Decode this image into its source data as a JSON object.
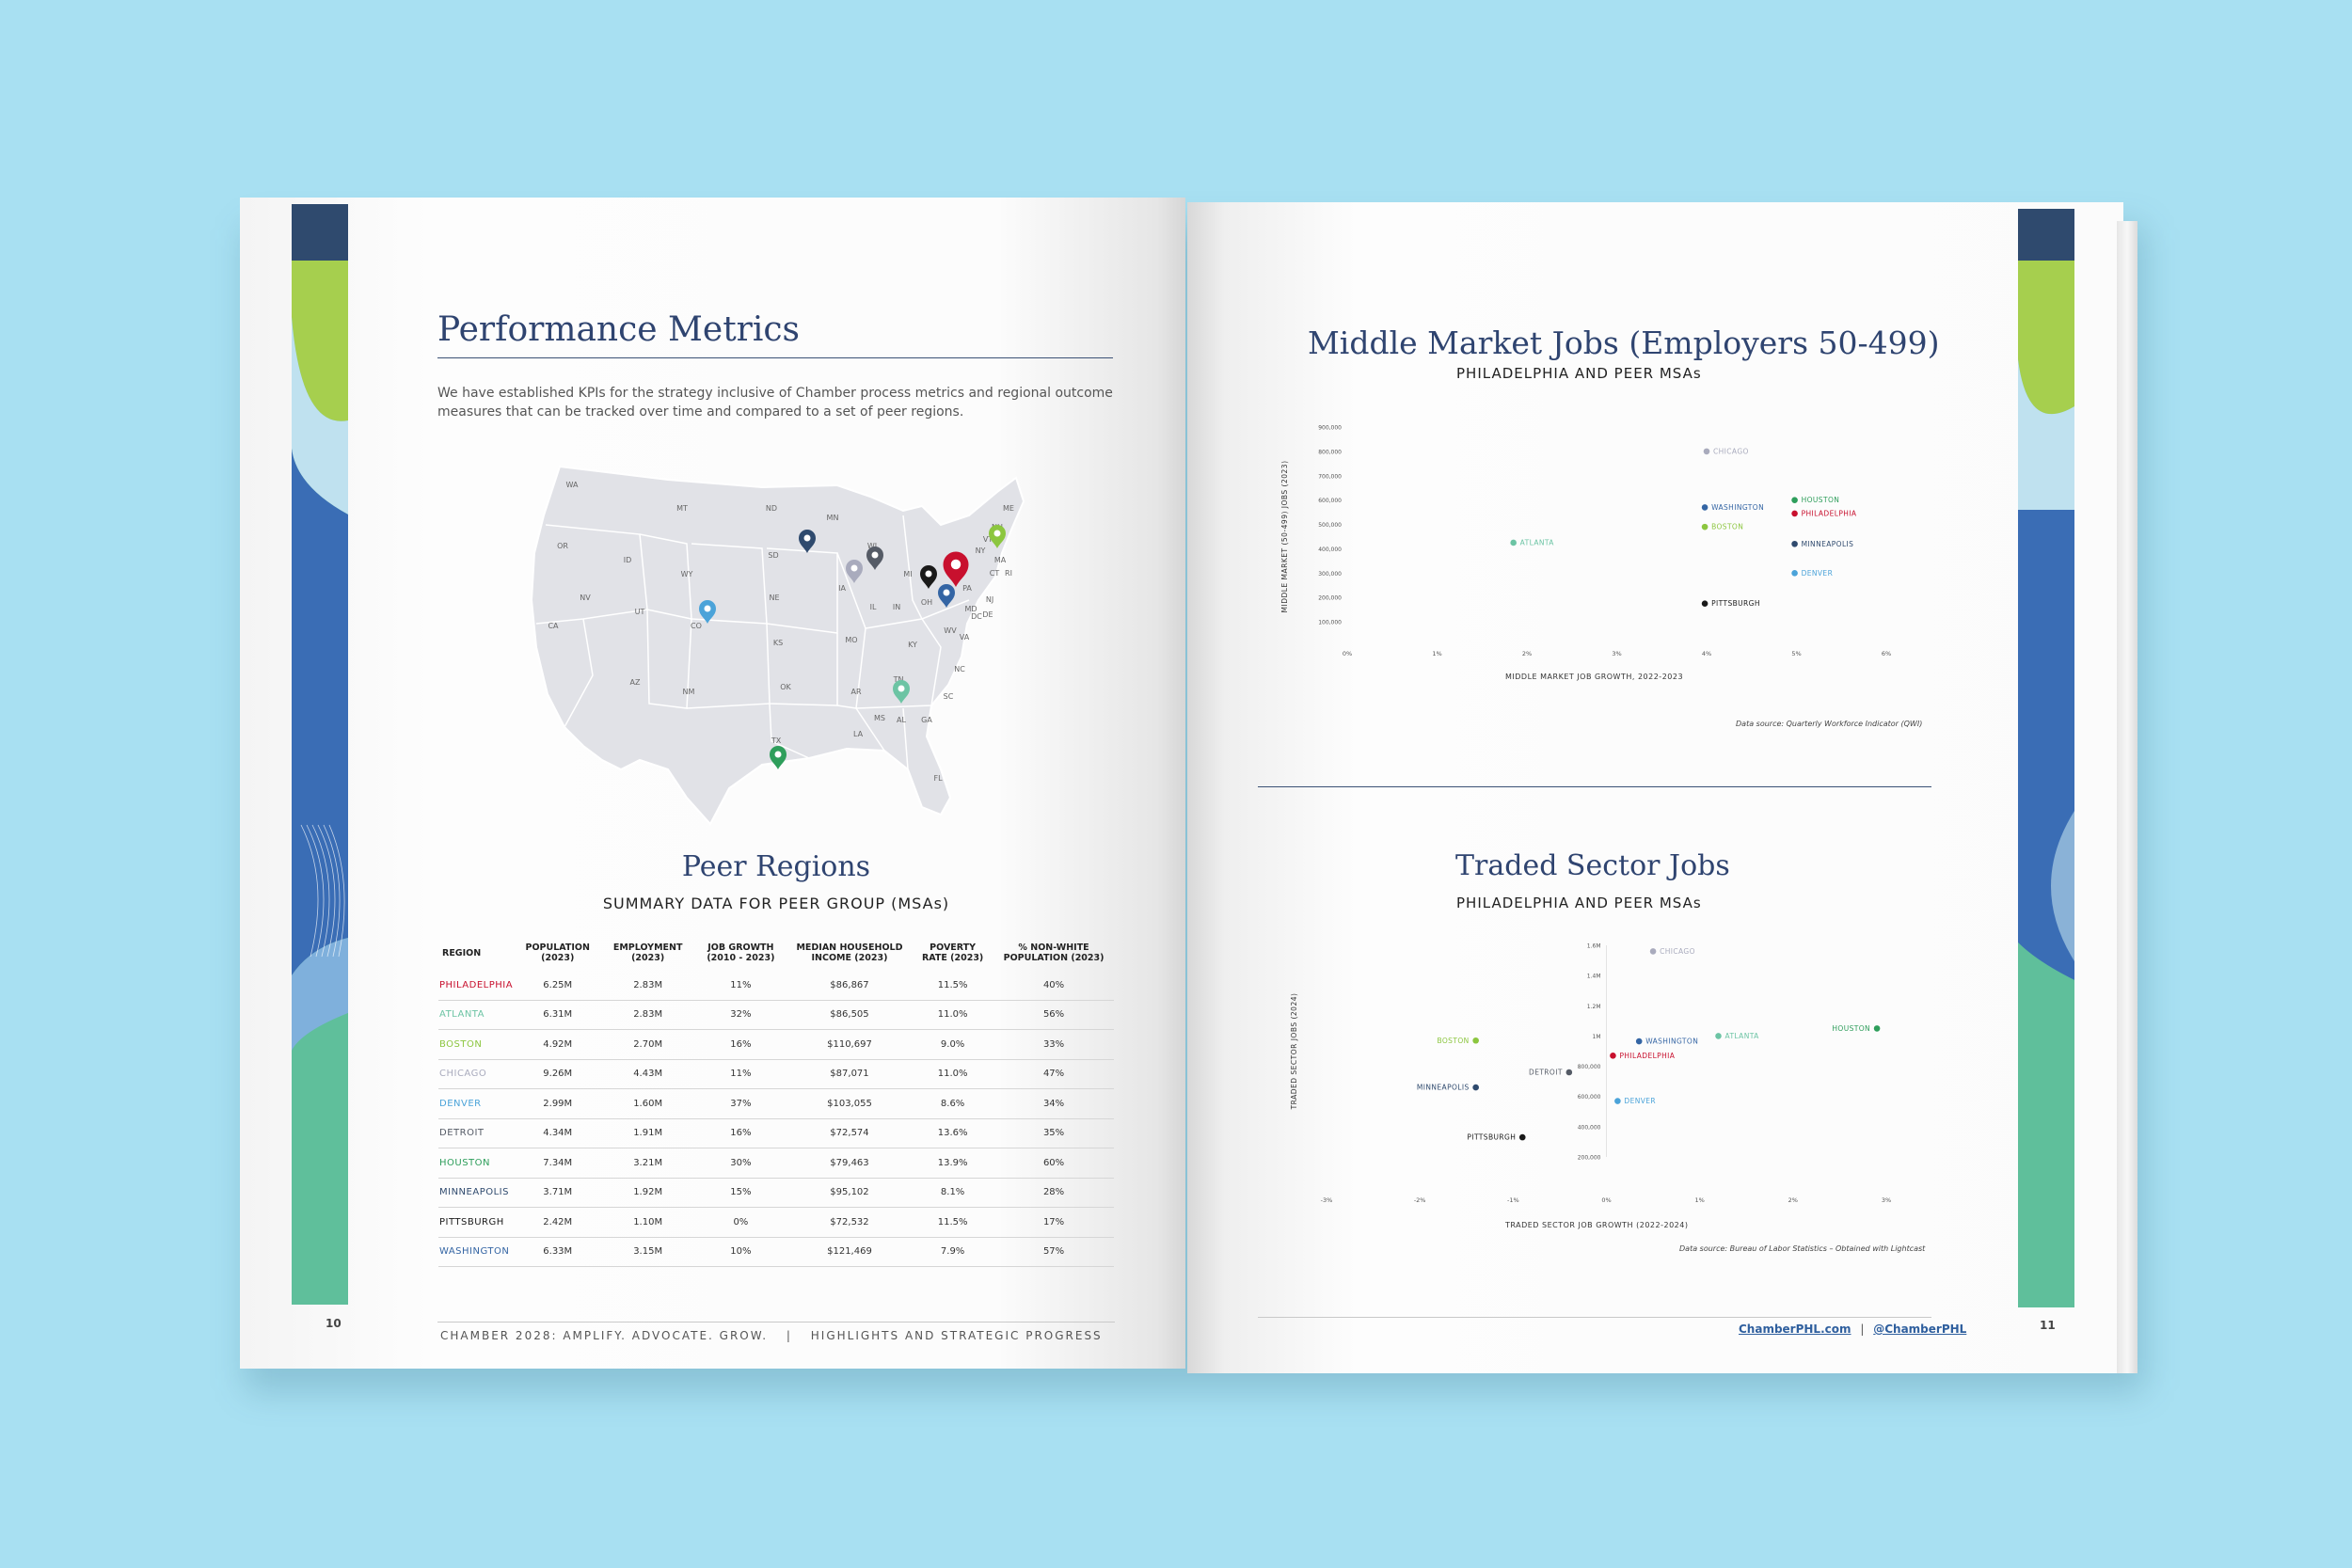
{
  "left_page": {
    "title": "Performance Metrics",
    "intro": "We have established KPIs for the strategy inclusive of Chamber process metrics and regional outcome measures that can be tracked over time and compared to a set of peer regions.",
    "map": {
      "state_labels": [
        "WA",
        "OR",
        "CA",
        "NV",
        "ID",
        "MT",
        "WY",
        "UT",
        "AZ",
        "CO",
        "NM",
        "ND",
        "SD",
        "NE",
        "KS",
        "OK",
        "TX",
        "MN",
        "IA",
        "MO",
        "AR",
        "LA",
        "WI",
        "IL",
        "MI",
        "IN",
        "OH",
        "KY",
        "TN",
        "MS",
        "AL",
        "GA",
        "FL",
        "SC",
        "NC",
        "VA",
        "WV",
        "PA",
        "NY",
        "VT",
        "NH",
        "ME",
        "MA",
        "CT",
        "RI",
        "NJ",
        "DE",
        "MD",
        "DC"
      ],
      "pins": [
        {
          "name": "Minneapolis",
          "color": "#2f4a6e"
        },
        {
          "name": "Chicago",
          "color": "#a9abbd"
        },
        {
          "name": "Detroit",
          "color": "#555b66"
        },
        {
          "name": "Pittsburgh",
          "color": "#1a1a1a"
        },
        {
          "name": "Philadelphia",
          "color": "#c8102e"
        },
        {
          "name": "Washington",
          "color": "#3465a4"
        },
        {
          "name": "Boston",
          "color": "#8cc63f"
        },
        {
          "name": "Denver",
          "color": "#4ba3d9"
        },
        {
          "name": "Atlanta",
          "color": "#6cc4a4"
        },
        {
          "name": "Houston",
          "color": "#2e9e5b"
        }
      ]
    },
    "peer_title": "Peer Regions",
    "peer_subtitle": "SUMMARY DATA FOR PEER GROUP (MSAs)",
    "table": {
      "headers": [
        "REGION",
        "POPULATION (2023)",
        "EMPLOYMENT (2023)",
        "JOB GROWTH (2010 - 2023)",
        "MEDIAN HOUSEHOLD INCOME (2023)",
        "POVERTY RATE (2023)",
        "% NON-WHITE POPULATION (2023)"
      ],
      "rows": [
        {
          "region": "PHILADELPHIA",
          "color": "#c8102e",
          "cells": [
            "6.25M",
            "2.83M",
            "11%",
            "$86,867",
            "11.5%",
            "40%"
          ]
        },
        {
          "region": "ATLANTA",
          "color": "#6cc4a4",
          "cells": [
            "6.31M",
            "2.83M",
            "32%",
            "$86,505",
            "11.0%",
            "56%"
          ]
        },
        {
          "region": "BOSTON",
          "color": "#8cc63f",
          "cells": [
            "4.92M",
            "2.70M",
            "16%",
            "$110,697",
            "9.0%",
            "33%"
          ]
        },
        {
          "region": "CHICAGO",
          "color": "#a9abbd",
          "cells": [
            "9.26M",
            "4.43M",
            "11%",
            "$87,071",
            "11.0%",
            "47%"
          ]
        },
        {
          "region": "DENVER",
          "color": "#4ba3d9",
          "cells": [
            "2.99M",
            "1.60M",
            "37%",
            "$103,055",
            "8.6%",
            "34%"
          ]
        },
        {
          "region": "DETROIT",
          "color": "#555b66",
          "cells": [
            "4.34M",
            "1.91M",
            "16%",
            "$72,574",
            "13.6%",
            "35%"
          ]
        },
        {
          "region": "HOUSTON",
          "color": "#2e9e5b",
          "cells": [
            "7.34M",
            "3.21M",
            "30%",
            "$79,463",
            "13.9%",
            "60%"
          ]
        },
        {
          "region": "MINNEAPOLIS",
          "color": "#2f4a6e",
          "cells": [
            "3.71M",
            "1.92M",
            "15%",
            "$95,102",
            "8.1%",
            "28%"
          ]
        },
        {
          "region": "PITTSBURGH",
          "color": "#1a1a1a",
          "cells": [
            "2.42M",
            "1.10M",
            "0%",
            "$72,532",
            "11.5%",
            "17%"
          ]
        },
        {
          "region": "WASHINGTON",
          "color": "#3465a4",
          "cells": [
            "6.33M",
            "3.15M",
            "10%",
            "$121,469",
            "7.9%",
            "57%"
          ]
        }
      ]
    },
    "page_number": "10",
    "footer_left": "CHAMBER 2028: AMPLIFY. ADVOCATE. GROW.",
    "footer_sep": "|",
    "footer_right": "HIGHLIGHTS AND STRATEGIC PROGRESS"
  },
  "right_page": {
    "chart1": {
      "title": "Middle Market Jobs (Employers 50-499)",
      "subtitle": "PHILADELPHIA AND PEER MSAs",
      "source": "Data source: Quarterly Workforce Indicator (QWI)"
    },
    "chart2": {
      "title": "Traded Sector Jobs",
      "subtitle": "PHILADELPHIA AND PEER MSAs",
      "source": "Data source: Bureau of Labor Statistics – Obtained with Lightcast"
    },
    "page_number": "11",
    "link1": "ChamberPHL.com",
    "link_sep": "|",
    "link2": "@ChamberPHL"
  },
  "chart_data": [
    {
      "type": "scatter",
      "title": "Middle Market Jobs (Employers 50-499)",
      "subtitle": "PHILADELPHIA AND PEER MSAs",
      "xlabel": "MIDDLE MARKET JOB GROWTH, 2022-2023",
      "ylabel": "MIDDLE MARKET (50-499) JOBS (2023)",
      "xlim": [
        0,
        6
      ],
      "ylim": [
        0,
        900000
      ],
      "x_ticks": [
        0,
        1,
        2,
        3,
        4,
        5,
        6
      ],
      "x_tick_labels": [
        "0%",
        "1%",
        "2%",
        "3%",
        "4%",
        "5%",
        "6%"
      ],
      "y_ticks": [
        100000,
        200000,
        300000,
        400000,
        500000,
        600000,
        700000,
        800000,
        900000
      ],
      "y_tick_labels": [
        "100,000",
        "200,000",
        "300,000",
        "400,000",
        "500,000",
        "600,000",
        "700,000",
        "800,000",
        "900,000"
      ],
      "points": [
        {
          "name": "CHICAGO",
          "x": 4.0,
          "y": 800000,
          "color": "#a9abbd"
        },
        {
          "name": "HOUSTON",
          "x": 4.98,
          "y": 600000,
          "color": "#2e9e5b"
        },
        {
          "name": "PHILADELPHIA",
          "x": 4.98,
          "y": 545000,
          "color": "#c8102e"
        },
        {
          "name": "WASHINGTON",
          "x": 3.98,
          "y": 570000,
          "color": "#3465a4"
        },
        {
          "name": "BOSTON",
          "x": 3.98,
          "y": 490000,
          "color": "#8cc63f"
        },
        {
          "name": "MINNEAPOLIS",
          "x": 4.98,
          "y": 420000,
          "color": "#2f4a6e"
        },
        {
          "name": "ATLANTA",
          "x": 1.85,
          "y": 425000,
          "color": "#6cc4a4"
        },
        {
          "name": "DENVER",
          "x": 4.98,
          "y": 300000,
          "color": "#4ba3d9"
        },
        {
          "name": "PITTSBURGH",
          "x": 3.98,
          "y": 175000,
          "color": "#1a1a1a"
        }
      ]
    },
    {
      "type": "scatter",
      "title": "Traded Sector Jobs",
      "subtitle": "PHILADELPHIA AND PEER MSAs",
      "xlabel": "TRADED SECTOR JOB GROWTH (2022-2024)",
      "ylabel": "TRADED SECTOR JOBS (2024)",
      "xlim": [
        -3,
        3
      ],
      "ylim": [
        200000,
        1600000
      ],
      "x_ticks": [
        -3,
        -2,
        -1,
        0,
        1,
        2,
        3
      ],
      "x_tick_labels": [
        "-3%",
        "-2%",
        "-1%",
        "0%",
        "1%",
        "2%",
        "3%"
      ],
      "y_ticks": [
        200000,
        400000,
        600000,
        800000,
        1000000,
        1200000,
        1400000,
        1600000
      ],
      "y_tick_labels": [
        "200,000",
        "400,000",
        "600,000",
        "800,000",
        "1M",
        "1.2M",
        "1.4M",
        "1.6M"
      ],
      "points": [
        {
          "name": "CHICAGO",
          "x": 0.5,
          "y": 1560000,
          "color": "#a9abbd"
        },
        {
          "name": "HOUSTON",
          "x": 2.9,
          "y": 1050000,
          "color": "#2e9e5b"
        },
        {
          "name": "ATLANTA",
          "x": 1.2,
          "y": 1000000,
          "color": "#6cc4a4"
        },
        {
          "name": "WASHINGTON",
          "x": 0.35,
          "y": 965000,
          "color": "#3465a4"
        },
        {
          "name": "BOSTON",
          "x": -1.4,
          "y": 970000,
          "color": "#8cc63f"
        },
        {
          "name": "PHILADELPHIA",
          "x": 0.07,
          "y": 870000,
          "color": "#c8102e"
        },
        {
          "name": "DETROIT",
          "x": -0.4,
          "y": 760000,
          "color": "#555b66"
        },
        {
          "name": "MINNEAPOLIS",
          "x": -1.4,
          "y": 660000,
          "color": "#2f4a6e"
        },
        {
          "name": "DENVER",
          "x": 0.12,
          "y": 570000,
          "color": "#4ba3d9"
        },
        {
          "name": "PITTSBURGH",
          "x": -0.9,
          "y": 330000,
          "color": "#1a1a1a"
        }
      ]
    }
  ]
}
